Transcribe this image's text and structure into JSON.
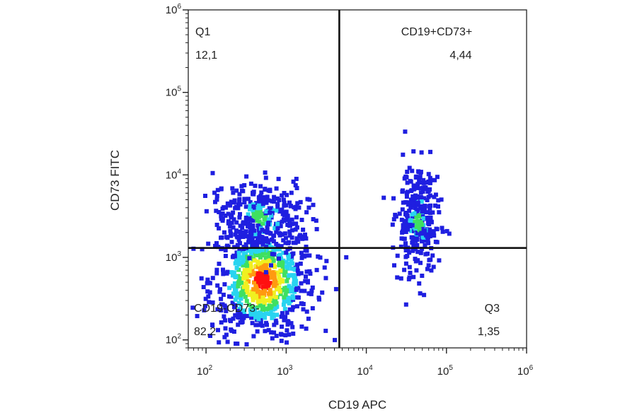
{
  "chart_data": {
    "type": "scatter",
    "title": "",
    "xlabel": "CD19 APC",
    "ylabel": "CD73 FITC",
    "x_scale": "log",
    "y_scale": "log",
    "xlim": [
      60,
      1000000
    ],
    "ylim": [
      80,
      1000000
    ],
    "x_ticks": [
      {
        "base": "10",
        "exp": "2",
        "value": 100
      },
      {
        "base": "10",
        "exp": "3",
        "value": 1000
      },
      {
        "base": "10",
        "exp": "4",
        "value": 10000
      },
      {
        "base": "10",
        "exp": "5",
        "value": 100000
      },
      {
        "base": "10",
        "exp": "6",
        "value": 1000000
      }
    ],
    "y_ticks": [
      {
        "base": "10",
        "exp": "2",
        "value": 100
      },
      {
        "base": "10",
        "exp": "3",
        "value": 1000
      },
      {
        "base": "10",
        "exp": "4",
        "value": 10000
      },
      {
        "base": "10",
        "exp": "5",
        "value": 100000
      },
      {
        "base": "10",
        "exp": "6",
        "value": 1000000
      }
    ],
    "gates": {
      "x": 4600,
      "y": 1300
    },
    "quadrants": [
      {
        "id": "q1",
        "name": "Q1",
        "value": "12,1",
        "position": "top-left"
      },
      {
        "id": "q2",
        "name": "CD19+CD73+",
        "value": "4,44",
        "position": "top-right"
      },
      {
        "id": "q3",
        "name": "Q3",
        "value": "1,35",
        "position": "bottom-right"
      },
      {
        "id": "q4",
        "name": "CD19-CD73-",
        "value": "82,2",
        "position": "bottom-left"
      }
    ],
    "populations": [
      {
        "name": "",
        "cx": 480,
        "cy": 550,
        "sx": 0.33,
        "sy": 0.36,
        "n": 760
      },
      {
        "name": "",
        "cx": 440,
        "cy": 3200,
        "sx": 0.28,
        "sy": 0.22,
        "n": 300
      },
      {
        "name": "",
        "cx": 42000,
        "cy": 2800,
        "sx": 0.13,
        "sy": 0.33,
        "n": 320
      }
    ],
    "density_colors": [
      "#1f1fe0",
      "#29d4f0",
      "#3fe060",
      "#f0f020",
      "#ff9a10",
      "#ff1010"
    ],
    "grid": false,
    "legend": "none"
  }
}
